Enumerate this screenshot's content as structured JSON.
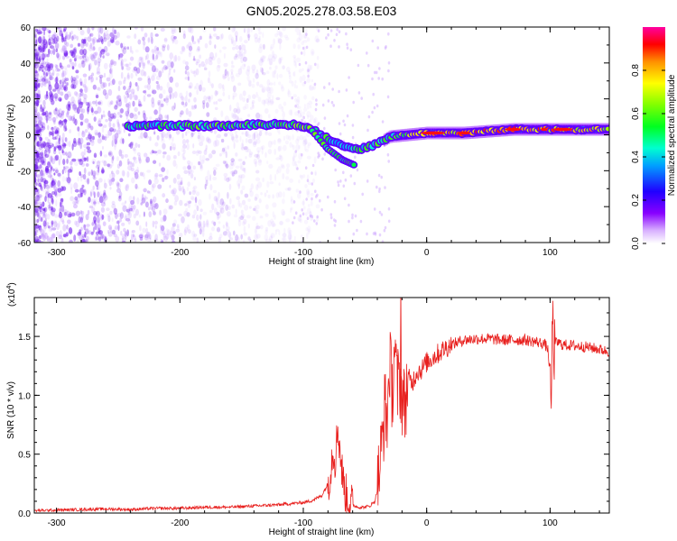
{
  "title": "GN05.2025.278.03.58.E03",
  "colors": {
    "snr_line": "#e8201e",
    "track_main": "#5a00ee",
    "background_scatter": "#7a2ef0"
  },
  "chart_data": [
    {
      "type": "heatmap",
      "name": "spectrogram",
      "xlabel": "Height of straight line (km)",
      "ylabel": "Frequency (Hz)",
      "xlim": [
        -318,
        148
      ],
      "ylim": [
        -60,
        60
      ],
      "xticks": [
        -300,
        -200,
        -100,
        0,
        100
      ],
      "xtick_labels": [
        "-300",
        "-200",
        "-100",
        "0",
        "100"
      ],
      "yticks": [
        60,
        40,
        20,
        0,
        -20,
        -40,
        -60
      ],
      "ytick_labels": [
        "60",
        "40",
        "20",
        "0",
        "-20",
        "-40",
        "-60"
      ],
      "colorbar": {
        "label": "Normalized spectral amplitude",
        "ticks": [
          0.0,
          0.2,
          0.4,
          0.6,
          0.8
        ],
        "tick_labels": [
          "0.0",
          "0.2",
          "0.4",
          "0.6",
          "0.8"
        ],
        "range": [
          0,
          1
        ]
      },
      "track": {
        "description_points": [
          {
            "x": -240,
            "freq": 5,
            "amp": 0.45
          },
          {
            "x": -200,
            "freq": 5,
            "amp": 0.55
          },
          {
            "x": -160,
            "freq": 5,
            "amp": 0.5
          },
          {
            "x": -120,
            "freq": 6,
            "amp": 0.55
          },
          {
            "x": -100,
            "freq": 5,
            "amp": 0.6
          },
          {
            "x": -85,
            "freq": 0,
            "amp": 0.5
          },
          {
            "x": -70,
            "freq": -6,
            "amp": 0.45
          },
          {
            "x": -55,
            "freq": -8,
            "amp": 0.45
          },
          {
            "x": -40,
            "freq": -5,
            "amp": 0.5
          },
          {
            "x": -30,
            "freq": -1,
            "amp": 0.5
          },
          {
            "x": -15,
            "freq": 0,
            "amp": 0.6
          },
          {
            "x": 0,
            "freq": 1,
            "amp": 0.75
          },
          {
            "x": 30,
            "freq": 1,
            "amp": 0.8
          },
          {
            "x": 70,
            "freq": 3,
            "amp": 0.85
          },
          {
            "x": 100,
            "freq": 3,
            "amp": 0.8
          },
          {
            "x": 148,
            "freq": 3,
            "amp": 0.7
          }
        ],
        "branch_points": [
          {
            "x": -95,
            "freq": 4
          },
          {
            "x": -80,
            "freq": -8
          },
          {
            "x": -68,
            "freq": -14
          },
          {
            "x": -58,
            "freq": -17
          }
        ]
      }
    },
    {
      "type": "line",
      "name": "snr",
      "xlabel": "Height of straight line (km)",
      "ylabel": "SNR (10 * v/v)",
      "y_multiplier_label": "(x10",
      "y_multiplier_exp": "4",
      "xlim": [
        -318,
        148
      ],
      "ylim": [
        0,
        1.83
      ],
      "xticks": [
        -300,
        -200,
        -100,
        0,
        100
      ],
      "xtick_labels": [
        "-300",
        "-200",
        "-100",
        "0",
        "100"
      ],
      "yticks": [
        0.0,
        0.5,
        1.0,
        1.5
      ],
      "ytick_labels": [
        "0.0",
        "0.5",
        "1.0",
        "1.5"
      ],
      "series": [
        {
          "name": "SNR",
          "x": [
            -318,
            -300,
            -280,
            -260,
            -240,
            -220,
            -200,
            -180,
            -160,
            -140,
            -120,
            -110,
            -100,
            -95,
            -90,
            -85,
            -80,
            -78,
            -76,
            -74,
            -72,
            -70,
            -68,
            -66,
            -64,
            -62,
            -60,
            -58,
            -56,
            -54,
            -50,
            -46,
            -42,
            -40,
            -38,
            -36,
            -34,
            -32,
            -30,
            -28,
            -26,
            -24,
            -22,
            -20,
            -18,
            -15,
            -12,
            -8,
            -4,
            0,
            5,
            10,
            15,
            20,
            25,
            30,
            40,
            50,
            60,
            70,
            80,
            90,
            95,
            98,
            100,
            101,
            102,
            103,
            104,
            106,
            110,
            120,
            130,
            140,
            148
          ],
          "values": [
            0.02,
            0.025,
            0.03,
            0.035,
            0.03,
            0.04,
            0.04,
            0.05,
            0.05,
            0.06,
            0.07,
            0.08,
            0.09,
            0.1,
            0.12,
            0.15,
            0.25,
            0.35,
            0.55,
            0.45,
            0.75,
            0.5,
            0.3,
            0.18,
            0.12,
            0.09,
            0.07,
            0.06,
            0.05,
            0.05,
            0.05,
            0.06,
            0.1,
            0.2,
            0.4,
            0.6,
            0.9,
            0.8,
            1.3,
            1.0,
            1.45,
            1.05,
            1.15,
            1.0,
            0.9,
            1.15,
            1.1,
            1.2,
            1.22,
            1.28,
            1.32,
            1.36,
            1.4,
            1.43,
            1.45,
            1.47,
            1.48,
            1.48,
            1.47,
            1.47,
            1.47,
            1.45,
            1.44,
            1.4,
            1.2,
            0.9,
            1.75,
            1.3,
            1.44,
            1.45,
            1.43,
            1.42,
            1.41,
            1.39,
            1.37
          ]
        }
      ]
    }
  ]
}
